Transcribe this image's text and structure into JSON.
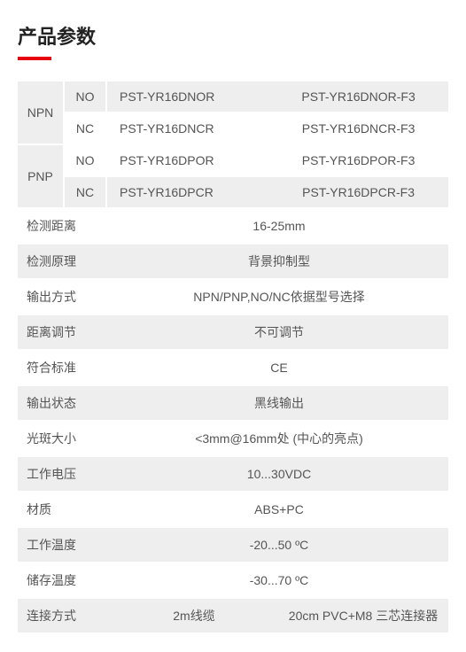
{
  "title": "产品参数",
  "colors": {
    "accent": "#e60012",
    "row_alt_bg": "#eeeeee",
    "row_bg": "#ffffff",
    "text": "#555555",
    "title_text": "#222222"
  },
  "modelTable": {
    "groups": [
      {
        "type": "NPN",
        "rows": [
          {
            "sub": "NO",
            "pn": "PST-YR16DNOR",
            "variant": "PST-YR16DNOR-F3",
            "alt": true
          },
          {
            "sub": "NC",
            "pn": "PST-YR16DNCR",
            "variant": "PST-YR16DNCR-F3",
            "alt": false
          }
        ]
      },
      {
        "type": "PNP",
        "rows": [
          {
            "sub": "NO",
            "pn": "PST-YR16DPOR",
            "variant": "PST-YR16DPOR-F3",
            "alt": false
          },
          {
            "sub": "NC",
            "pn": "PST-YR16DPCR",
            "variant": "PST-YR16DPCR-F3",
            "alt": true
          }
        ]
      }
    ]
  },
  "specs": [
    {
      "label": "检测距离",
      "value": "16-25mm"
    },
    {
      "label": "检测原理",
      "value": "背景抑制型"
    },
    {
      "label": "输出方式",
      "value": "NPN/PNP,NO/NC依据型号选择"
    },
    {
      "label": "距离调节",
      "value": "不可调节"
    },
    {
      "label": "符合标准",
      "value": "CE"
    },
    {
      "label": "输出状态",
      "value": "黑线输出"
    },
    {
      "label": "光斑大小",
      "value": "<3mm@16mm处 (中心的亮点)"
    },
    {
      "label": "工作电压",
      "value": "10...30VDC"
    },
    {
      "label": "材质",
      "value": "ABS+PC"
    },
    {
      "label": "工作温度",
      "value": "-20...50 ºC"
    },
    {
      "label": "储存温度",
      "value": "-30...70 ºC"
    }
  ],
  "connection": {
    "label": "连接方式",
    "value1": "2m线缆",
    "value2": "20cm PVC+M8 三芯连接器"
  }
}
